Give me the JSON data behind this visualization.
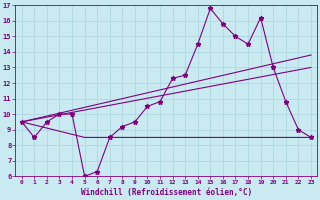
{
  "xlabel": "Windchill (Refroidissement éolien,°C)",
  "bg_color": "#c8eaf0",
  "line_color": "#800080",
  "grid_color": "#b0d8e0",
  "xlim": [
    -0.5,
    23.5
  ],
  "ylim": [
    6,
    17
  ],
  "xticks": [
    0,
    1,
    2,
    3,
    4,
    5,
    6,
    7,
    8,
    9,
    10,
    11,
    12,
    13,
    14,
    15,
    16,
    17,
    18,
    19,
    20,
    21,
    22,
    23
  ],
  "yticks": [
    6,
    7,
    8,
    9,
    10,
    11,
    12,
    13,
    14,
    15,
    16,
    17
  ],
  "line1_x": [
    0,
    1,
    2,
    3,
    4,
    5,
    6,
    7,
    8,
    9,
    10,
    11,
    12,
    13,
    14,
    15,
    16,
    17,
    18,
    19,
    20,
    21,
    22,
    23
  ],
  "line1_y": [
    9.5,
    8.5,
    9.5,
    10.0,
    10.0,
    6.0,
    6.3,
    8.5,
    9.2,
    9.5,
    10.5,
    10.8,
    12.3,
    12.5,
    14.5,
    16.8,
    15.8,
    15.0,
    14.5,
    16.2,
    13.0,
    10.8,
    9.0,
    8.5
  ],
  "line2_x": [
    0,
    5,
    6,
    7,
    8,
    9,
    10,
    11,
    12,
    13,
    14,
    15,
    16,
    17,
    18,
    19,
    20,
    21,
    22,
    23
  ],
  "line2_y": [
    9.5,
    8.5,
    8.5,
    8.5,
    8.5,
    8.5,
    8.5,
    8.5,
    8.5,
    8.5,
    8.5,
    8.5,
    8.5,
    8.5,
    8.5,
    8.5,
    8.5,
    8.5,
    8.5,
    8.5
  ],
  "line3_x": [
    0,
    23
  ],
  "line3_y": [
    9.5,
    13.8
  ],
  "line4_x": [
    0,
    23
  ],
  "line4_y": [
    9.5,
    13.0
  ]
}
